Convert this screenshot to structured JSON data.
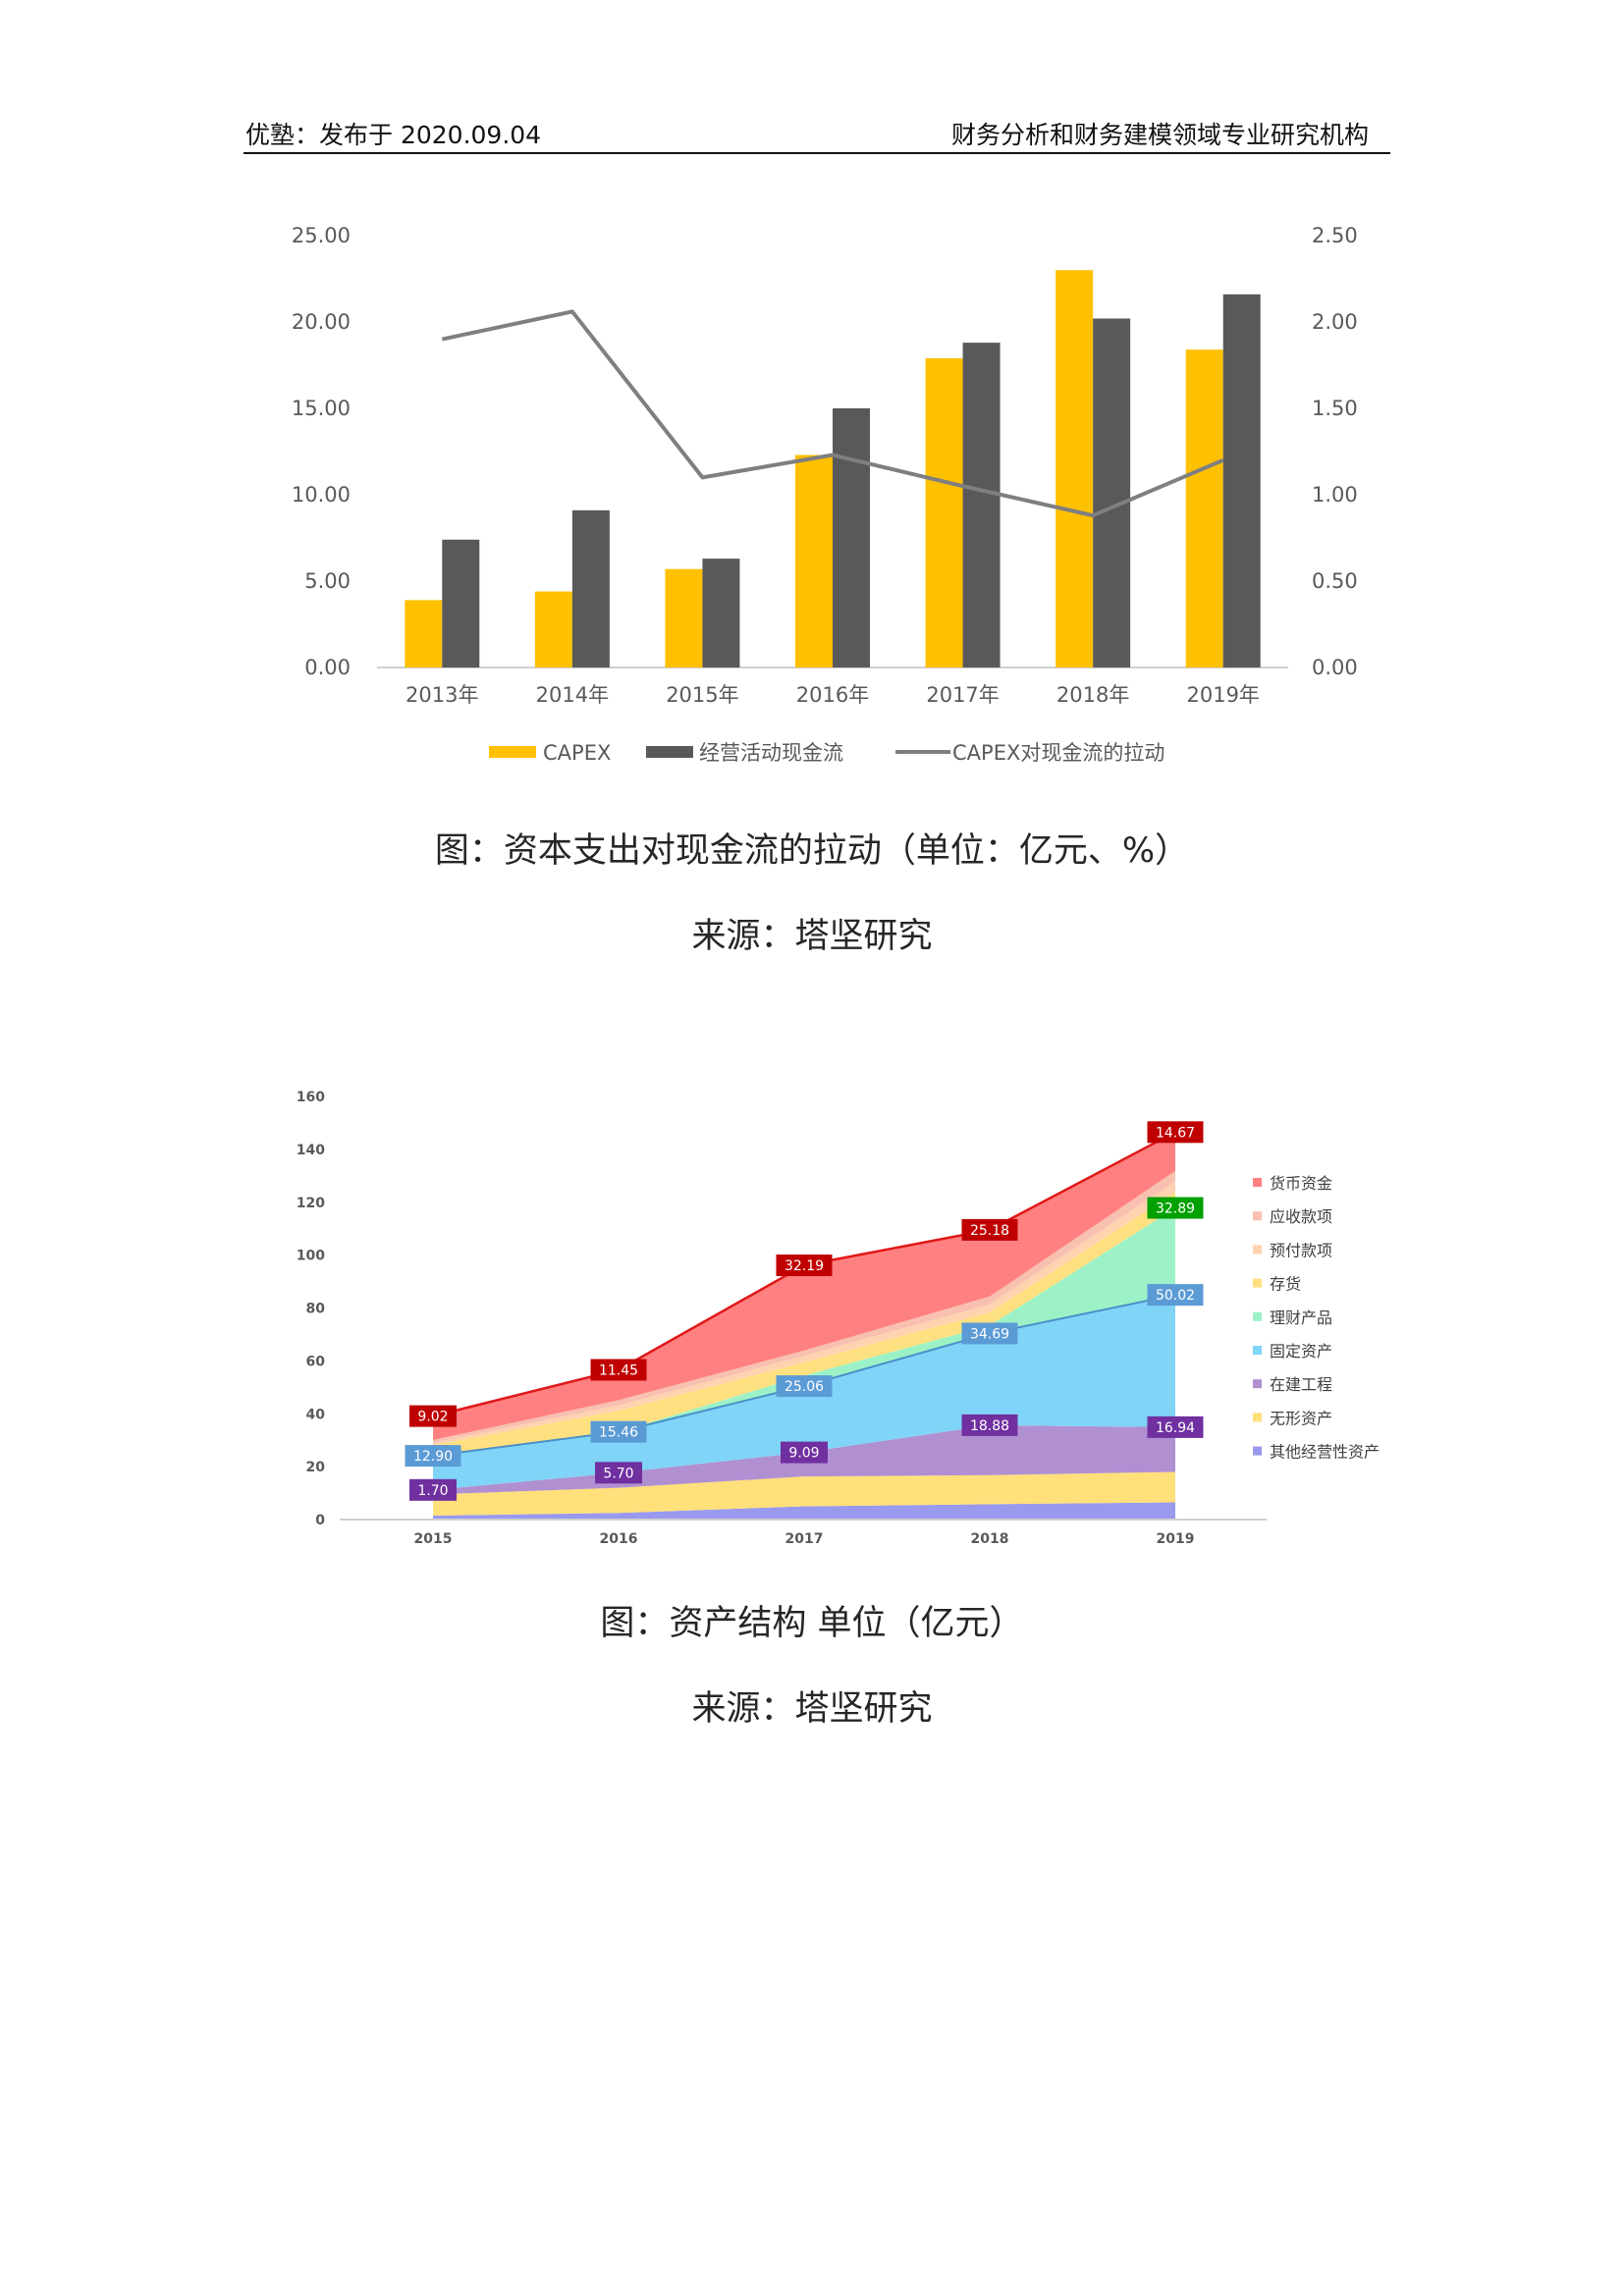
{
  "header": {
    "left": "优塾：发布于 2020.09.04",
    "right": "财务分析和财务建模领域专业研究机构"
  },
  "captions": {
    "chart1_title": "图：资本支出对现金流的拉动（单位：亿元、%）",
    "chart1_source": "来源：塔坚研究",
    "chart2_title": "图：资产结构  单位（亿元）",
    "chart2_source": "来源：塔坚研究"
  },
  "chart_data": [
    {
      "type": "bar",
      "categories": [
        "2013年",
        "2014年",
        "2015年",
        "2016年",
        "2017年",
        "2018年",
        "2019年"
      ],
      "series": [
        {
          "name": "CAPEX",
          "kind": "bar",
          "axis": "left",
          "color": "#FFC000",
          "values": [
            3.9,
            4.4,
            5.7,
            12.3,
            17.9,
            23.0,
            18.4
          ]
        },
        {
          "name": "经营活动现金流",
          "kind": "bar",
          "axis": "left",
          "color": "#595959",
          "values": [
            7.4,
            9.1,
            6.3,
            15.0,
            18.8,
            20.2,
            21.6
          ]
        },
        {
          "name": "CAPEX对现金流的拉动",
          "kind": "line",
          "axis": "right",
          "color": "#7F7F7F",
          "values": [
            1.9,
            2.06,
            1.1,
            1.23,
            1.05,
            0.88,
            1.2
          ]
        }
      ],
      "ylim": [
        0,
        25
      ],
      "y2lim": [
        0,
        2.5
      ],
      "yticks": [
        "0.00",
        "5.00",
        "10.00",
        "15.00",
        "20.00",
        "25.00"
      ],
      "y2ticks": [
        "0.00",
        "0.50",
        "1.00",
        "1.50",
        "2.00",
        "2.50"
      ],
      "legend_position": "bottom",
      "grid": false
    },
    {
      "type": "area",
      "stacked": true,
      "categories": [
        "2015",
        "2016",
        "2017",
        "2018",
        "2019"
      ],
      "ylim": [
        0,
        160
      ],
      "yticks": [
        "0",
        "20",
        "40",
        "60",
        "80",
        "100",
        "120",
        "140",
        "160"
      ],
      "legend_position": "right",
      "grid": false,
      "series": [
        {
          "name": "其他经营性资产",
          "color": "#9999EE",
          "values": [
            1.5,
            2.5,
            5.0,
            5.8,
            6.5
          ]
        },
        {
          "name": "无形资产",
          "color": "#FFE07A",
          "values": [
            8.0,
            9.5,
            11.3,
            11.0,
            11.5
          ]
        },
        {
          "name": "在建工程",
          "color": "#B090D0",
          "values": [
            1.7,
            5.7,
            9.09,
            18.88,
            16.94
          ]
        },
        {
          "name": "固定资产",
          "color": "#80D4F8",
          "values": [
            12.9,
            15.46,
            25.06,
            34.69,
            50.02
          ]
        },
        {
          "name": "理财产品",
          "color": "#9CF2C6",
          "values": [
            0.0,
            0.0,
            4.0,
            3.0,
            32.89
          ]
        },
        {
          "name": "存货",
          "color": "#FFE080",
          "values": [
            4.0,
            8.0,
            5.0,
            5.0,
            6.0
          ]
        },
        {
          "name": "预付款项",
          "color": "#FFD2B0",
          "values": [
            1.0,
            2.0,
            2.5,
            3.0,
            4.0
          ]
        },
        {
          "name": "应收款项",
          "color": "#F8C0B0",
          "values": [
            1.0,
            2.0,
            2.0,
            3.0,
            4.0
          ]
        },
        {
          "name": "货币资金",
          "color": "#FF8080",
          "values": [
            9.02,
            11.45,
            32.19,
            25.18,
            14.67
          ]
        }
      ],
      "data_labels": [
        {
          "series": "货币资金",
          "values": [
            "9.02",
            "11.45",
            "32.19",
            "25.18",
            "14.67"
          ],
          "color": "#C00000"
        },
        {
          "series": "理财产品",
          "values": [
            null,
            null,
            null,
            null,
            "32.89"
          ],
          "color": "#00A000"
        },
        {
          "series": "固定资产",
          "values": [
            "12.90",
            "15.46",
            "25.06",
            "34.69",
            "50.02"
          ],
          "color": "#5B9BD5"
        },
        {
          "series": "在建工程",
          "values": [
            "1.70",
            "5.70",
            "9.09",
            "18.88",
            "16.94"
          ],
          "color": "#7030A0"
        }
      ]
    }
  ]
}
